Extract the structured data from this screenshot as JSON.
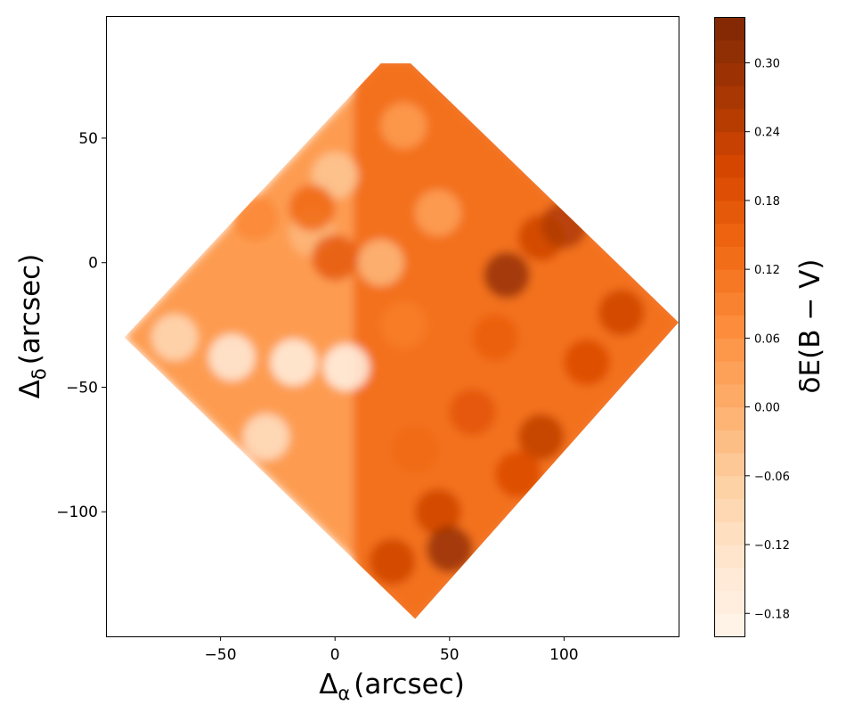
{
  "chart_data": {
    "type": "heatmap",
    "title": "",
    "xlabel": {
      "main": "Δ",
      "sub": "α",
      "unit": "(arcsec)"
    },
    "ylabel": {
      "main": "Δ",
      "sub": "δ",
      "unit": "(arcsec)"
    },
    "xlim": [
      -100,
      150
    ],
    "ylim": [
      -150,
      99
    ],
    "x_ticks": [
      -50,
      0,
      50,
      100
    ],
    "x_tick_labels": [
      "−50",
      "0",
      "50",
      "100"
    ],
    "y_ticks": [
      50,
      0,
      -50,
      -100
    ],
    "y_tick_labels": [
      "50",
      "0",
      "−50",
      "−100"
    ],
    "grid": false,
    "field_outline": [
      [
        20,
        80
      ],
      [
        33,
        80
      ],
      [
        150,
        -24
      ],
      [
        35,
        -143
      ],
      [
        -92,
        -30
      ]
    ],
    "colorbar": {
      "label": "δE(B − V)",
      "range": [
        -0.2,
        0.34
      ],
      "levels": 27,
      "ticks": [
        -0.18,
        -0.12,
        -0.06,
        0.0,
        0.06,
        0.12,
        0.18,
        0.24,
        0.3
      ],
      "tick_labels": [
        "−0.18",
        "−0.12",
        "−0.06",
        "0.00",
        "0.06",
        "0.12",
        "0.18",
        "0.24",
        "0.30"
      ],
      "colormap": "Oranges",
      "colormap_stops": [
        "#fff5eb",
        "#fee6ce",
        "#fdd0a2",
        "#fdae6b",
        "#fd8d3c",
        "#f16913",
        "#d94801",
        "#a63603",
        "#7f2704"
      ]
    },
    "features": [
      {
        "x": -45,
        "y": -38,
        "value": -0.16
      },
      {
        "x": -18,
        "y": -40,
        "value": -0.18
      },
      {
        "x": 5,
        "y": -42,
        "value": -0.19
      },
      {
        "x": -70,
        "y": -30,
        "value": -0.1
      },
      {
        "x": -30,
        "y": -70,
        "value": -0.12
      },
      {
        "x": 0,
        "y": 35,
        "value": -0.05
      },
      {
        "x": -10,
        "y": 12,
        "value": -0.02
      },
      {
        "x": 30,
        "y": 55,
        "value": 0.04
      },
      {
        "x": 45,
        "y": 20,
        "value": 0.03
      },
      {
        "x": 20,
        "y": 0,
        "value": -0.02
      },
      {
        "x": 0,
        "y": 2,
        "value": 0.17
      },
      {
        "x": -10,
        "y": 22,
        "value": 0.14
      },
      {
        "x": -35,
        "y": 18,
        "value": 0.08
      },
      {
        "x": 90,
        "y": 10,
        "value": 0.22
      },
      {
        "x": 75,
        "y": -5,
        "value": 0.3
      },
      {
        "x": 100,
        "y": 15,
        "value": 0.26
      },
      {
        "x": 125,
        "y": -20,
        "value": 0.22
      },
      {
        "x": 110,
        "y": -40,
        "value": 0.2
      },
      {
        "x": 70,
        "y": -30,
        "value": 0.16
      },
      {
        "x": 60,
        "y": -60,
        "value": 0.18
      },
      {
        "x": 90,
        "y": -70,
        "value": 0.24
      },
      {
        "x": 45,
        "y": -100,
        "value": 0.22
      },
      {
        "x": 50,
        "y": -115,
        "value": 0.3
      },
      {
        "x": 25,
        "y": -120,
        "value": 0.22
      },
      {
        "x": 35,
        "y": -75,
        "value": 0.14
      },
      {
        "x": 80,
        "y": -85,
        "value": 0.2
      },
      {
        "x": 30,
        "y": -25,
        "value": 0.1
      }
    ]
  }
}
